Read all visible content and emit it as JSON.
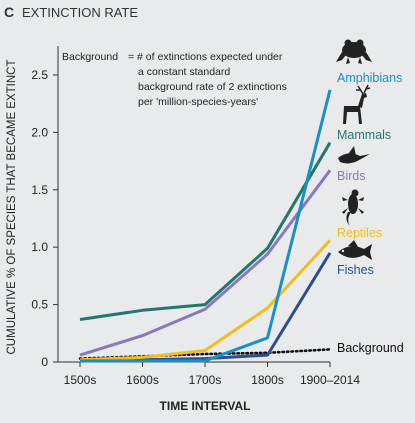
{
  "panel": {
    "letter": "C",
    "title": "EXTINCTION RATE"
  },
  "annotation": {
    "term": "Background",
    "definition_lines": [
      "= # of extinctions expected under",
      "a constant standard",
      "background rate of 2 extinctions",
      "per 'million-species-years'"
    ]
  },
  "chart_data": {
    "type": "line",
    "title": "EXTINCTION RATE",
    "xlabel": "TIME INTERVAL",
    "ylabel": "CUMULATIVE % OF SPECIES THAT BECAME EXTINCT",
    "categories": [
      "1500s",
      "1600s",
      "1700s",
      "1800s",
      "1900–2014"
    ],
    "yticks": [
      "0",
      "0.5",
      "1.0",
      "1.5",
      "2.0",
      "2.5"
    ],
    "ylim": [
      0,
      2.7
    ],
    "grid": false,
    "series": [
      {
        "name": "Amphibians",
        "color": "#1a8fc4",
        "icon": "frog-icon",
        "style": "solid",
        "values": [
          0.01,
          0.01,
          0.01,
          0.21,
          2.37
        ]
      },
      {
        "name": "Mammals",
        "color": "#23786c",
        "icon": "deer-icon",
        "style": "solid",
        "values": [
          0.37,
          0.45,
          0.5,
          0.99,
          1.91
        ]
      },
      {
        "name": "Birds",
        "color": "#8a78bc",
        "icon": "bird-icon",
        "style": "solid",
        "values": [
          0.06,
          0.23,
          0.46,
          0.94,
          1.67
        ]
      },
      {
        "name": "Reptiles",
        "color": "#f3bd1d",
        "icon": "lizard-icon",
        "style": "solid",
        "values": [
          0.02,
          0.04,
          0.1,
          0.47,
          1.06
        ]
      },
      {
        "name": "Fishes",
        "color": "#2a4f8c",
        "icon": "fish-icon",
        "style": "solid",
        "values": [
          0.01,
          0.02,
          0.03,
          0.06,
          0.95
        ]
      },
      {
        "name": "Background",
        "color": "#111111",
        "icon": "",
        "style": "dotted",
        "values": [
          0.03,
          0.05,
          0.07,
          0.08,
          0.11
        ]
      }
    ]
  }
}
